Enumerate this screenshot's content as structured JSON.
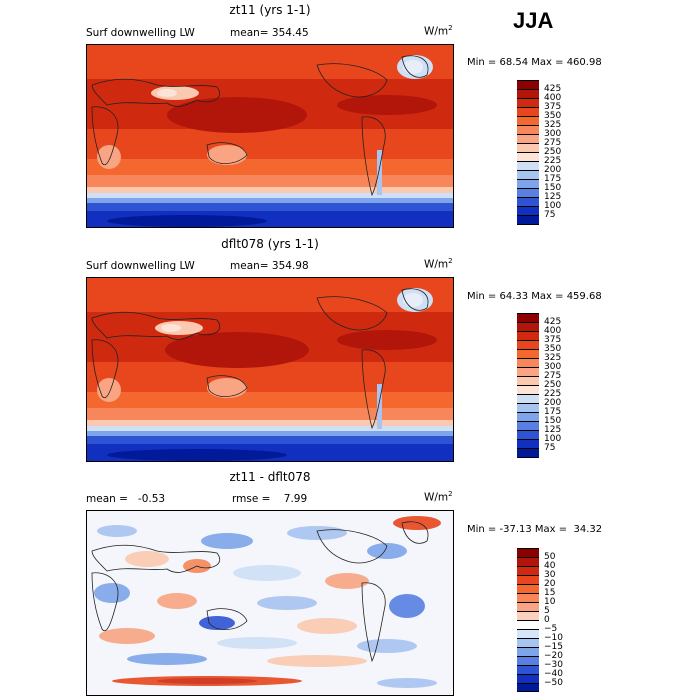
{
  "season": "JJA",
  "panels": [
    {
      "title": "zt11 (yrs 1-1)",
      "left_label": "Surf downwelling LW",
      "mid_label": "mean= 354.45",
      "units": "W/m",
      "units_exp": "2",
      "minmax": "Min =  68.54 Max = 460.98",
      "colorbar": {
        "labels": [
          "425",
          "400",
          "375",
          "350",
          "325",
          "300",
          "275",
          "250",
          "225",
          "200",
          "175",
          "150",
          "125",
          "100",
          "75"
        ],
        "colors": [
          "#8b0000",
          "#b2160a",
          "#cf2a10",
          "#e8461d",
          "#f4682f",
          "#f7865a",
          "#f9a583",
          "#fbc9b0",
          "#fde4d6",
          "#cfe0f6",
          "#a8c4f0",
          "#7ea4ea",
          "#5780e2",
          "#2e54d4",
          "#1230c0",
          "#001a9a"
        ]
      }
    },
    {
      "title": "dflt078 (yrs 1-1)",
      "left_label": "Surf downwelling LW",
      "mid_label": "mean= 354.98",
      "units": "W/m",
      "units_exp": "2",
      "minmax": "Min =  64.33 Max = 459.68",
      "colorbar": {
        "labels": [
          "425",
          "400",
          "375",
          "350",
          "325",
          "300",
          "275",
          "250",
          "225",
          "200",
          "175",
          "150",
          "125",
          "100",
          "75"
        ],
        "colors": [
          "#8b0000",
          "#b2160a",
          "#cf2a10",
          "#e8461d",
          "#f4682f",
          "#f7865a",
          "#f9a583",
          "#fbc9b0",
          "#fde4d6",
          "#cfe0f6",
          "#a8c4f0",
          "#7ea4ea",
          "#5780e2",
          "#2e54d4",
          "#1230c0",
          "#001a9a"
        ]
      }
    },
    {
      "title": "zt11 - dflt078",
      "left_label": "mean =   -0.53",
      "mid_label": "rmse =    7.99",
      "units": "W/m",
      "units_exp": "2",
      "minmax": "Min = -37.13 Max =  34.32",
      "colorbar": {
        "labels": [
          "50",
          "40",
          "30",
          "20",
          "15",
          "10",
          "5",
          "0",
          "−5",
          "−10",
          "−15",
          "−20",
          "−30",
          "−40",
          "−50"
        ],
        "colors": [
          "#8b0000",
          "#b2160a",
          "#cf2a10",
          "#e8461d",
          "#f4682f",
          "#f7865a",
          "#f9a583",
          "#fbd0bc",
          "#ffffff",
          "#d6e6f8",
          "#a8c4f0",
          "#7ea4ea",
          "#5780e2",
          "#2e54d4",
          "#1230c0",
          "#001a9a"
        ]
      }
    }
  ]
}
